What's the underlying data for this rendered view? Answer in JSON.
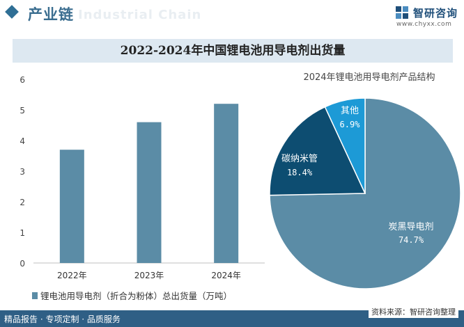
{
  "header": {
    "section_title": "产业链",
    "watermark_text": "Industrial Chain",
    "logo_name": "智研咨询",
    "logo_url": "www.chyxx.com"
  },
  "footer": {
    "left_text": "精品报告 · 专项定制 · 品质服务",
    "source_text": "资料来源：智研咨询整理"
  },
  "chart_data": [
    {
      "type": "bar",
      "title": "2022-2024年中国锂电池用导电剂出货量",
      "categories": [
        "2022年",
        "2023年",
        "2024年"
      ],
      "series": [
        {
          "name": "锂电池用导电剂（折合为粉体）总出货量（万吨）",
          "values": [
            3.7,
            4.6,
            5.2
          ]
        }
      ],
      "y_ticks": [
        0,
        1,
        2,
        3,
        4,
        5,
        6
      ],
      "ylim": [
        0,
        6
      ],
      "grid": false,
      "legend": "bottom-left",
      "color": "#5b8ca6"
    },
    {
      "type": "pie",
      "title": "2024年锂电池用导电剂产品结构",
      "slices": [
        {
          "label": "炭黑导电剂",
          "value": 74.7,
          "value_label": "74.7%",
          "color": "#5b8ca6"
        },
        {
          "label": "碳纳米管",
          "value": 18.4,
          "value_label": "18.4%",
          "color": "#0d4d71"
        },
        {
          "label": "其他",
          "value": 6.9,
          "value_label": "6.9%",
          "color": "#1d9ad6"
        }
      ]
    }
  ]
}
